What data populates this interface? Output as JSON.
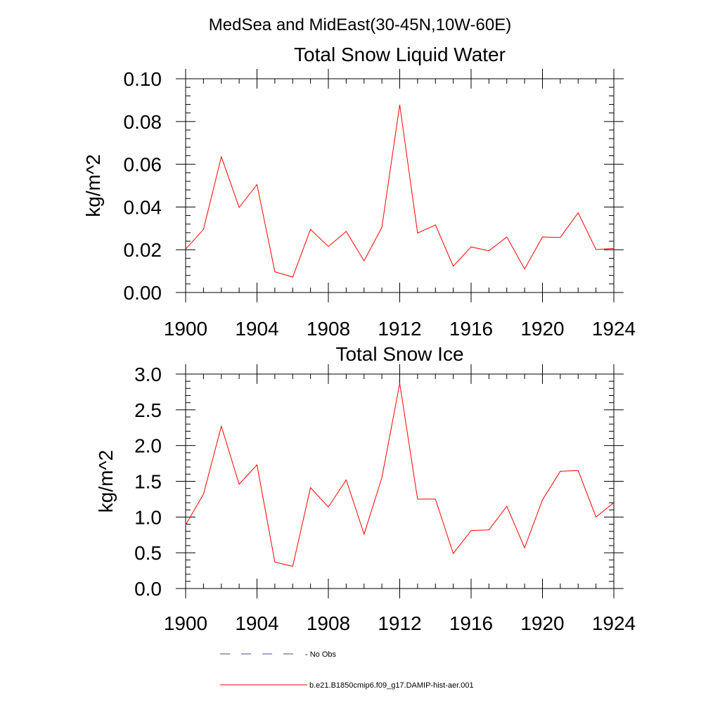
{
  "suptitle": "MedSea and MidEast(30-45N,10W-60E)",
  "legend": {
    "items": [
      {
        "label": "- No Obs",
        "style": "dashed",
        "color": "#4a4a8a"
      },
      {
        "label": "b.e21.B1850cmip6.f09_g17.DAMIP-hist-aer.001",
        "style": "solid",
        "color": "#ff0000"
      }
    ]
  },
  "chart_data": [
    {
      "type": "line",
      "title": "Total Snow Liquid Water",
      "xlabel": "",
      "ylabel": "kg/m^2",
      "xlim": [
        1900,
        1924
      ],
      "ylim": [
        0.0,
        0.1
      ],
      "x_ticks": [
        1900,
        1904,
        1908,
        1912,
        1916,
        1920,
        1924
      ],
      "y_ticks": [
        "0.00",
        "0.02",
        "0.04",
        "0.06",
        "0.08",
        "0.10"
      ],
      "grid": false,
      "series": [
        {
          "color": "#ff0000",
          "x": [
            1900,
            1901,
            1902,
            1903,
            1904,
            1905,
            1906,
            1907,
            1908,
            1909,
            1910,
            1911,
            1912,
            1913,
            1914,
            1915,
            1916,
            1917,
            1918,
            1919,
            1920,
            1921,
            1922,
            1923,
            1924
          ],
          "values": [
            0.0203,
            0.0295,
            0.0635,
            0.0398,
            0.0505,
            0.0097,
            0.0072,
            0.0295,
            0.0215,
            0.0286,
            0.0148,
            0.0305,
            0.0878,
            0.0278,
            0.0316,
            0.0123,
            0.0213,
            0.0195,
            0.026,
            0.011,
            0.026,
            0.0258,
            0.0373,
            0.0201,
            0.0206
          ]
        }
      ]
    },
    {
      "type": "line",
      "title": "Total Snow Ice",
      "xlabel": "",
      "ylabel": "kg/m^2",
      "xlim": [
        1900,
        1924
      ],
      "ylim": [
        0.0,
        3.0
      ],
      "x_ticks": [
        1900,
        1904,
        1908,
        1912,
        1916,
        1920,
        1924
      ],
      "y_ticks": [
        "0.0",
        "0.5",
        "1.0",
        "1.5",
        "2.0",
        "2.5",
        "3.0"
      ],
      "grid": false,
      "series": [
        {
          "color": "#ff0000",
          "x": [
            1900,
            1901,
            1902,
            1903,
            1904,
            1905,
            1906,
            1907,
            1908,
            1909,
            1910,
            1911,
            1912,
            1913,
            1914,
            1915,
            1916,
            1917,
            1918,
            1919,
            1920,
            1921,
            1922,
            1923,
            1924
          ],
          "values": [
            0.89,
            1.32,
            2.27,
            1.46,
            1.73,
            0.37,
            0.31,
            1.41,
            1.14,
            1.52,
            0.76,
            1.55,
            2.87,
            1.25,
            1.25,
            0.49,
            0.81,
            0.82,
            1.15,
            0.57,
            1.24,
            1.64,
            1.65,
            1.0,
            1.2
          ]
        }
      ]
    }
  ]
}
